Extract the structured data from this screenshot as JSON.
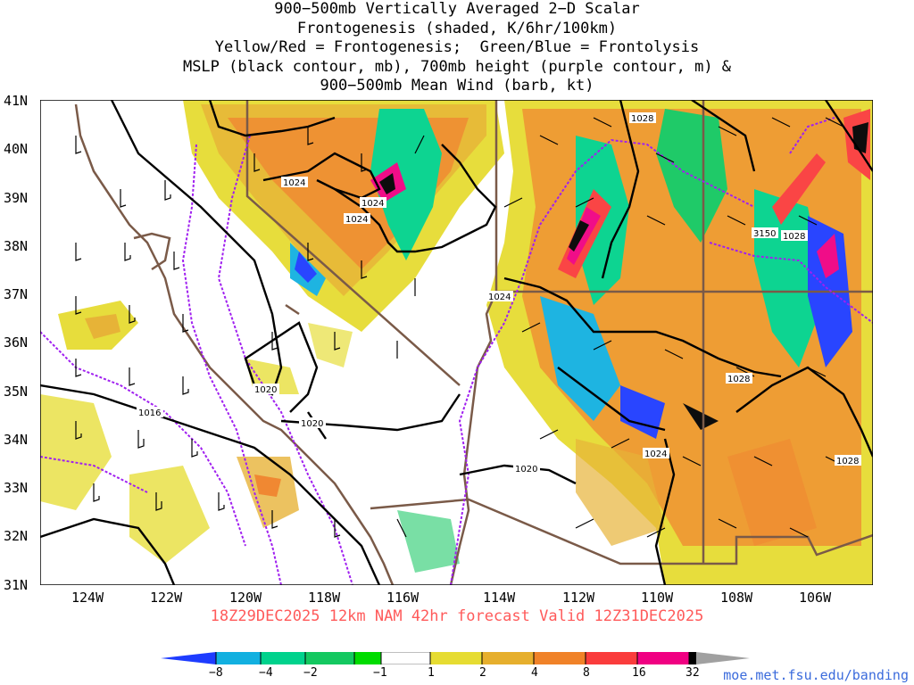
{
  "title": {
    "line1": "900−500mb Vertically Averaged 2−D Scalar",
    "line2": "Frontogenesis (shaded, K/6hr/100km)",
    "line3": "Yellow/Red = Frontogenesis;  Green/Blue = Frontolysis",
    "line4": "MSLP (black contour, mb), 700mb height (purple contour, m) &",
    "line5": "900−500mb Mean Wind (barb, kt)"
  },
  "footer": {
    "valid": "18Z29DEC2025 12km NAM 42hr forecast Valid 12Z31DEC2025"
  },
  "credit": {
    "url": "moe.met.fsu.edu/banding"
  },
  "axes": {
    "lat_labels": [
      "41N",
      "40N",
      "39N",
      "38N",
      "37N",
      "36N",
      "35N",
      "34N",
      "33N",
      "32N",
      "31N"
    ],
    "lon_labels": [
      "124W",
      "122W",
      "120W",
      "118W",
      "116W",
      "114W",
      "112W",
      "110W",
      "108W",
      "106W"
    ]
  },
  "contour_labels": {
    "mslp": [
      "1028",
      "1024",
      "1024",
      "1024",
      "1024",
      "1020",
      "1016",
      "1020",
      "1020",
      "1028",
      "1024",
      "1028",
      "1028"
    ],
    "height": [
      "3150"
    ]
  },
  "colorbar": {
    "labels": [
      "−8",
      "−4",
      "−2",
      "−1",
      "1",
      "2",
      "4",
      "8",
      "16",
      "32"
    ],
    "colors": [
      "#1e3cff",
      "#12b0e0",
      "#00d28c",
      "#14c860",
      "#00dc00",
      "#ffffff",
      "#e6dc32",
      "#e6af2d",
      "#f08228",
      "#fa3c3c",
      "#f00082",
      "#000000",
      "#a0a0a0"
    ]
  },
  "colors": {
    "mslp": "#000000",
    "height": "#a020f0",
    "borders": "#7a5a48",
    "footer_text": "#ff5a5a",
    "credit_text": "#3b6bdc"
  }
}
